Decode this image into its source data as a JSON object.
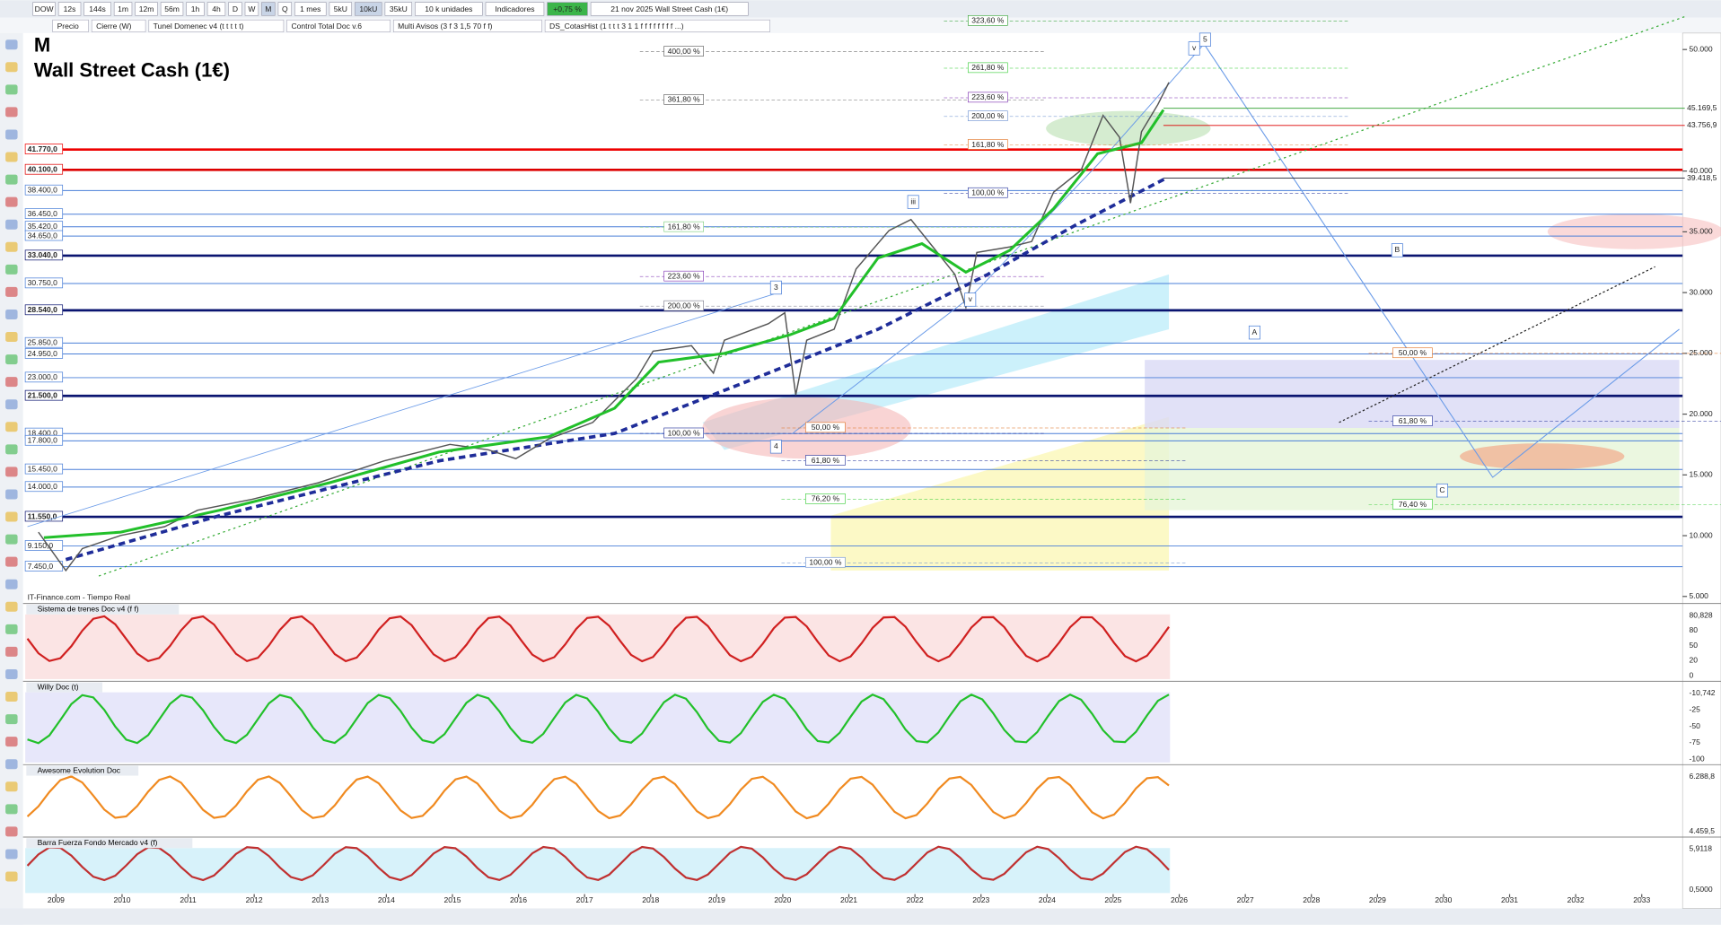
{
  "toolbar": {
    "items": [
      "DOW",
      "12s",
      "144s",
      "1m",
      "12m",
      "56m",
      "1h",
      "4h",
      "D",
      "W",
      "M",
      "Q",
      "1 mes",
      "5kU",
      "10kU",
      "35kU",
      "10 k unidades",
      "Indicadores",
      "+0,75 %",
      "21 nov 2025 Wall Street Cash (1€)"
    ]
  },
  "indicator_bar": {
    "items": [
      "Precio",
      "Cierre (W)",
      "Tunel Domenec v4 (t t t t t)",
      "Control Total Doc v.6",
      "Multi Avisos (3 f 3 1,5 70 f f)",
      "DS_CotasHist (1 t t t 3 1 1 f f f f f f f f ...)"
    ]
  },
  "chart": {
    "period": "M",
    "title": "Wall Street Cash (1€)",
    "source": "IT-Finance.com - Tiempo Real",
    "yticks": [
      {
        "value": 50000,
        "label": "50.000"
      },
      {
        "value": 40000,
        "label": "40.000"
      },
      {
        "value": 35000,
        "label": "35.000"
      },
      {
        "value": 30000,
        "label": "30.000"
      },
      {
        "value": 25000,
        "label": "25.000"
      },
      {
        "value": 20000,
        "label": "20.000"
      },
      {
        "value": 15000,
        "label": "15.000"
      },
      {
        "value": 10000,
        "label": "10.000"
      },
      {
        "value": 5000,
        "label": "5.000"
      }
    ],
    "levels": [
      {
        "value": 41770,
        "label": "41.770,0"
      },
      {
        "value": 40100,
        "label": "40.100,0"
      },
      {
        "value": 38400,
        "label": "38.400,0"
      },
      {
        "value": 36450,
        "label": "36.450,0"
      },
      {
        "value": 35420,
        "label": "35.420,0"
      },
      {
        "value": 34650,
        "label": "34.650,0"
      },
      {
        "value": 33040,
        "label": "33.040,0"
      },
      {
        "value": 30750,
        "label": "30.750,0"
      },
      {
        "value": 28540,
        "label": "28.540,0"
      },
      {
        "value": 25850,
        "label": "25.850,0"
      },
      {
        "value": 24950,
        "label": "24.950,0"
      },
      {
        "value": 23000,
        "label": "23.000,0"
      },
      {
        "value": 21500,
        "label": "21.500,0"
      },
      {
        "value": 18400,
        "label": "18.400,0"
      },
      {
        "value": 17800,
        "label": "17.800,0"
      },
      {
        "value": 15450,
        "label": "15.450,0"
      },
      {
        "value": 14000,
        "label": "14.000,0"
      },
      {
        "value": 11550,
        "label": "11.550,0"
      },
      {
        "value": 9150,
        "label": "9.150,0"
      },
      {
        "value": 7450,
        "label": "7.450,0"
      }
    ],
    "price_markers": [
      {
        "value": 45169.5,
        "label": "45.169,5"
      },
      {
        "value": 43756.9,
        "label": "43.756,9"
      },
      {
        "value": 39418.5,
        "label": "39.418,5"
      }
    ],
    "fib_labels": [
      "323,60 %",
      "400,00 %",
      "261,80 %",
      "361,80 %",
      "223,60 %",
      "200,00 %",
      "161,80 %",
      "100,00 %",
      "161,80 %",
      "223,60 %",
      "200,00 %",
      "100,00 %",
      "50,00 %",
      "61,80 %",
      "76,20 %",
      "100,00 %",
      "50,00 %",
      "61,80 %",
      "76,40 %"
    ],
    "wave_labels": [
      "5",
      "v",
      "iii",
      "3",
      "B",
      "A",
      "C",
      "4",
      "v"
    ],
    "years": [
      "2009",
      "2010",
      "2011",
      "2012",
      "2013",
      "2014",
      "2015",
      "2016",
      "2017",
      "2018",
      "2019",
      "2020",
      "2021",
      "2022",
      "2023",
      "2024",
      "2025",
      "2026",
      "2027",
      "2028",
      "2029",
      "2030",
      "2031",
      "2032",
      "2033"
    ]
  },
  "panels": [
    {
      "title": "Sistema de trenes Doc v4 (f f)",
      "labels": [
        "80,828",
        "80",
        "50",
        "20",
        "0"
      ]
    },
    {
      "title": "Willy Doc (t)",
      "labels": [
        "-10,742",
        "-25",
        "-50",
        "-75",
        "-100"
      ]
    },
    {
      "title": "Awesome Evolution Doc",
      "labels": [
        "6.288,8",
        "4.459,5"
      ]
    },
    {
      "title": "Barra Fuerza Fondo Mercado v4 (f)",
      "labels": [
        "5,9118",
        "0,5000"
      ]
    }
  ]
}
